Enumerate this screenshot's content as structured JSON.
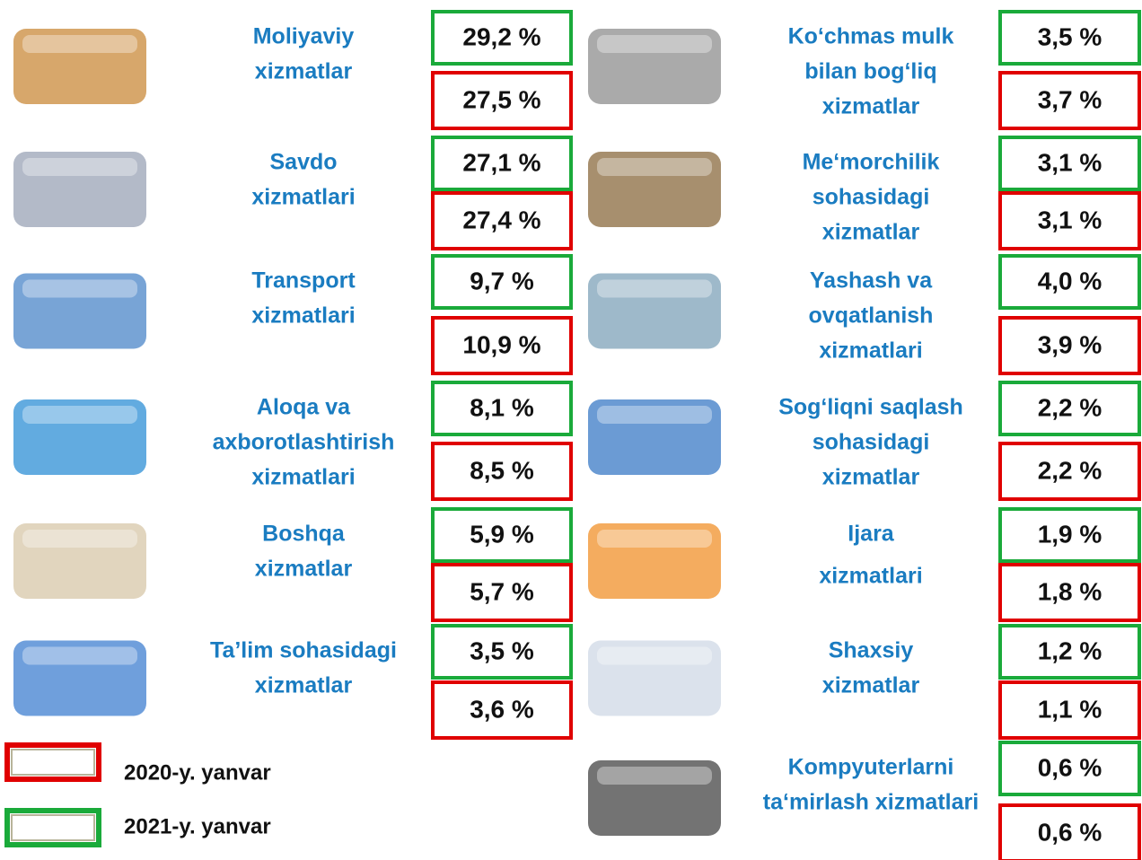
{
  "left": [
    {
      "label": [
        "Moliyaviy",
        "xizmatlar"
      ],
      "v2021": "29,2 %",
      "v2020": "27,5 %"
    },
    {
      "label": [
        "Savdo",
        "xizmatlari"
      ],
      "v2021": "27,1 %",
      "v2020": "27,4 %"
    },
    {
      "label": [
        "Transport",
        "xizmatlari"
      ],
      "v2021": "9,7 %",
      "v2020": "10,9 %"
    },
    {
      "label": [
        "Aloqa va",
        "axborotlashtirish",
        "xizmatlari"
      ],
      "v2021": "8,1 %",
      "v2020": "8,5 %"
    },
    {
      "label": [
        "Boshqa",
        "xizmatlar"
      ],
      "v2021": "5,9 %",
      "v2020": "5,7 %"
    },
    {
      "label": [
        "Ta’lim sohasidagi",
        "xizmatlar"
      ],
      "v2021": "3,5 %",
      "v2020": "3,6 %"
    }
  ],
  "right": [
    {
      "label": [
        "Ko‘chmas mulk",
        "bilan bog‘liq",
        "xizmatlar"
      ],
      "v2021": "3,5 %",
      "v2020": "3,7 %"
    },
    {
      "label": [
        "Me‘morchilik",
        "sohasidagi",
        "xizmatlar"
      ],
      "v2021": "3,1 %",
      "v2020": "3,1 %"
    },
    {
      "label": [
        "Yashash va",
        "ovqatlanish",
        "xizmatlari"
      ],
      "v2021": "4,0 %",
      "v2020": "3,9 %"
    },
    {
      "label": [
        "Sog‘liqni saqlash",
        "sohasidagi",
        "xizmatlar"
      ],
      "v2021": "2,2 %",
      "v2020": "2,2 %"
    },
    {
      "label": [
        "Ijara",
        "xizmatlari"
      ],
      "v2021": "1,9 %",
      "v2020": "1,8 %"
    },
    {
      "label": [
        "Shaxsiy",
        "xizmatlar"
      ],
      "v2021": "1,2 %",
      "v2020": "1,1 %"
    },
    {
      "label": [
        "Kompyuterlarni",
        "ta‘mirlash xizmatlari"
      ],
      "v2021": "0,6 %",
      "v2020": "0,6 %"
    }
  ],
  "legend": {
    "y2020": "2020-y. yanvar",
    "y2021": "2021-y. yanvar"
  }
}
